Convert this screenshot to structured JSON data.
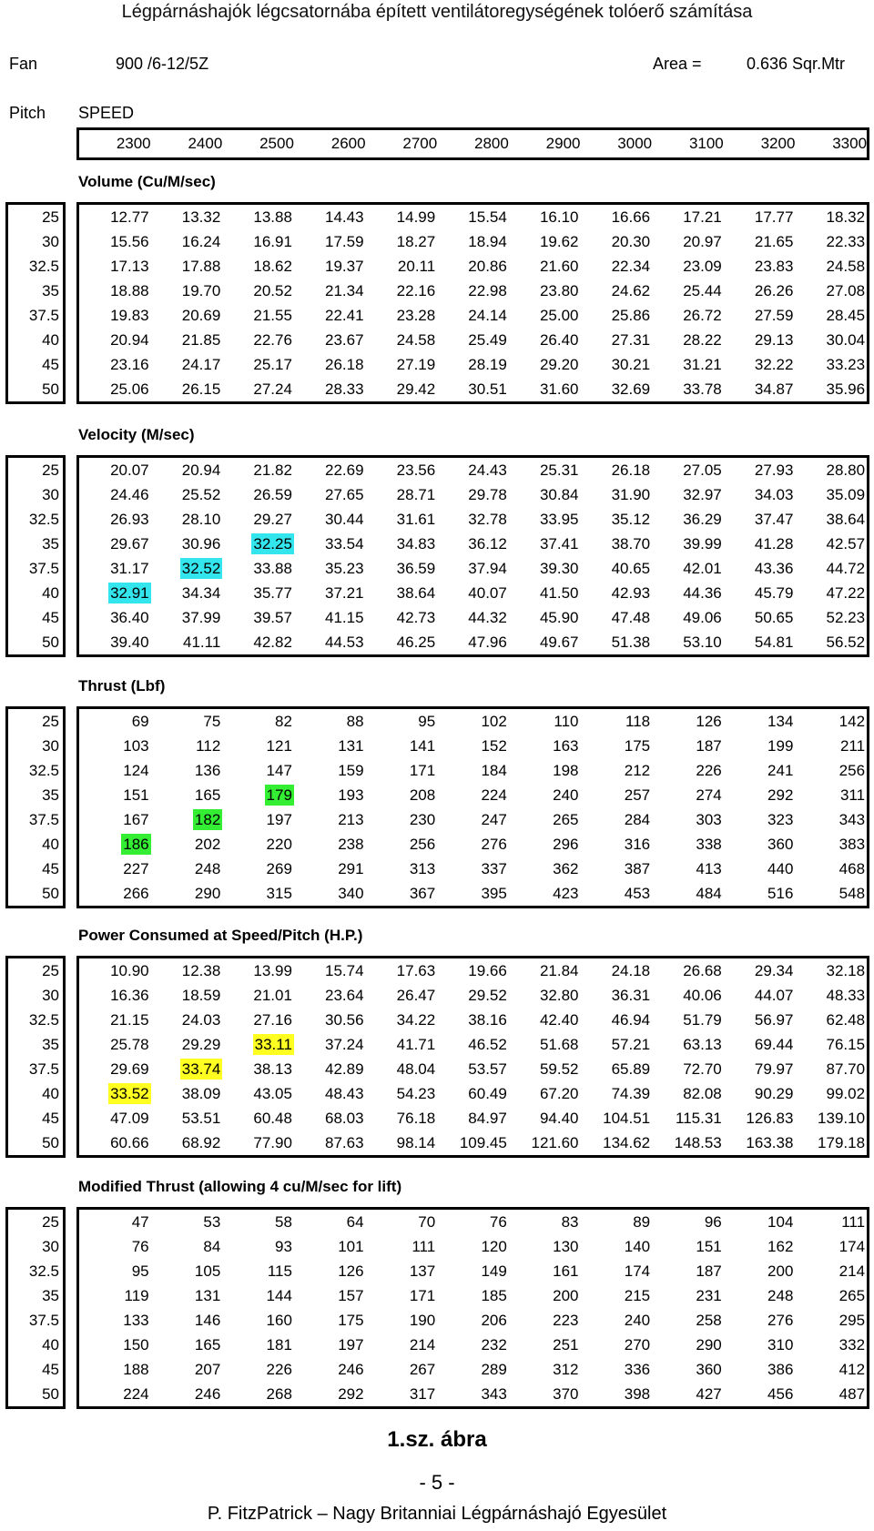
{
  "header": {
    "title": "Légpárnáshajók légcsatornába épített ventilátoregységének tolóerő számítása"
  },
  "fan": {
    "label": "Fan",
    "model": "900 /6-12/5Z",
    "area_label": "Area =",
    "area_value": "0.636 Sqr.Mtr"
  },
  "pitch_label": "Pitch",
  "speed_label": "SPEED",
  "speeds": [
    "2300",
    "2400",
    "2500",
    "2600",
    "2700",
    "2800",
    "2900",
    "3000",
    "3100",
    "3200",
    "3300"
  ],
  "pitches": [
    "25",
    "30",
    "32.5",
    "35",
    "37.5",
    "40",
    "45",
    "50"
  ],
  "highlight_colors": {
    "cyan": "#33e6ee",
    "green": "#33ee33",
    "yellow": "#ffff22"
  },
  "tables": [
    {
      "title": "Volume (Cu/M/sec)",
      "rows": [
        [
          "12.77",
          "13.32",
          "13.88",
          "14.43",
          "14.99",
          "15.54",
          "16.10",
          "16.66",
          "17.21",
          "17.77",
          "18.32"
        ],
        [
          "15.56",
          "16.24",
          "16.91",
          "17.59",
          "18.27",
          "18.94",
          "19.62",
          "20.30",
          "20.97",
          "21.65",
          "22.33"
        ],
        [
          "17.13",
          "17.88",
          "18.62",
          "19.37",
          "20.11",
          "20.86",
          "21.60",
          "22.34",
          "23.09",
          "23.83",
          "24.58"
        ],
        [
          "18.88",
          "19.70",
          "20.52",
          "21.34",
          "22.16",
          "22.98",
          "23.80",
          "24.62",
          "25.44",
          "26.26",
          "27.08"
        ],
        [
          "19.83",
          "20.69",
          "21.55",
          "22.41",
          "23.28",
          "24.14",
          "25.00",
          "25.86",
          "26.72",
          "27.59",
          "28.45"
        ],
        [
          "20.94",
          "21.85",
          "22.76",
          "23.67",
          "24.58",
          "25.49",
          "26.40",
          "27.31",
          "28.22",
          "29.13",
          "30.04"
        ],
        [
          "23.16",
          "24.17",
          "25.17",
          "26.18",
          "27.19",
          "28.19",
          "29.20",
          "30.21",
          "31.21",
          "32.22",
          "33.23"
        ],
        [
          "25.06",
          "26.15",
          "27.24",
          "28.33",
          "29.42",
          "30.51",
          "31.60",
          "32.69",
          "33.78",
          "34.87",
          "35.96"
        ]
      ],
      "highlight": null
    },
    {
      "title": "Velocity (M/sec)",
      "rows": [
        [
          "20.07",
          "20.94",
          "21.82",
          "22.69",
          "23.56",
          "24.43",
          "25.31",
          "26.18",
          "27.05",
          "27.93",
          "28.80"
        ],
        [
          "24.46",
          "25.52",
          "26.59",
          "27.65",
          "28.71",
          "29.78",
          "30.84",
          "31.90",
          "32.97",
          "34.03",
          "35.09"
        ],
        [
          "26.93",
          "28.10",
          "29.27",
          "30.44",
          "31.61",
          "32.78",
          "33.95",
          "35.12",
          "36.29",
          "37.47",
          "38.64"
        ],
        [
          "29.67",
          "30.96",
          "32.25",
          "33.54",
          "34.83",
          "36.12",
          "37.41",
          "38.70",
          "39.99",
          "41.28",
          "42.57"
        ],
        [
          "31.17",
          "32.52",
          "33.88",
          "35.23",
          "36.59",
          "37.94",
          "39.30",
          "40.65",
          "42.01",
          "43.36",
          "44.72"
        ],
        [
          "32.91",
          "34.34",
          "35.77",
          "37.21",
          "38.64",
          "40.07",
          "41.50",
          "42.93",
          "44.36",
          "45.79",
          "47.22"
        ],
        [
          "36.40",
          "37.99",
          "39.57",
          "41.15",
          "42.73",
          "44.32",
          "45.90",
          "47.48",
          "49.06",
          "50.65",
          "52.23"
        ],
        [
          "39.40",
          "41.11",
          "42.82",
          "44.53",
          "46.25",
          "47.96",
          "49.67",
          "51.38",
          "53.10",
          "54.81",
          "56.52"
        ]
      ],
      "highlight": "cyan"
    },
    {
      "title": "Thrust (Lbf)",
      "rows": [
        [
          "69",
          "75",
          "82",
          "88",
          "95",
          "102",
          "110",
          "118",
          "126",
          "134",
          "142"
        ],
        [
          "103",
          "112",
          "121",
          "131",
          "141",
          "152",
          "163",
          "175",
          "187",
          "199",
          "211"
        ],
        [
          "124",
          "136",
          "147",
          "159",
          "171",
          "184",
          "198",
          "212",
          "226",
          "241",
          "256"
        ],
        [
          "151",
          "165",
          "179",
          "193",
          "208",
          "224",
          "240",
          "257",
          "274",
          "292",
          "311"
        ],
        [
          "167",
          "182",
          "197",
          "213",
          "230",
          "247",
          "265",
          "284",
          "303",
          "323",
          "343"
        ],
        [
          "186",
          "202",
          "220",
          "238",
          "256",
          "276",
          "296",
          "316",
          "338",
          "360",
          "383"
        ],
        [
          "227",
          "248",
          "269",
          "291",
          "313",
          "337",
          "362",
          "387",
          "413",
          "440",
          "468"
        ],
        [
          "266",
          "290",
          "315",
          "340",
          "367",
          "395",
          "423",
          "453",
          "484",
          "516",
          "548"
        ]
      ],
      "highlight": "green"
    },
    {
      "title": "Power Consumed at Speed/Pitch (H.P.)",
      "rows": [
        [
          "10.90",
          "12.38",
          "13.99",
          "15.74",
          "17.63",
          "19.66",
          "21.84",
          "24.18",
          "26.68",
          "29.34",
          "32.18"
        ],
        [
          "16.36",
          "18.59",
          "21.01",
          "23.64",
          "26.47",
          "29.52",
          "32.80",
          "36.31",
          "40.06",
          "44.07",
          "48.33"
        ],
        [
          "21.15",
          "24.03",
          "27.16",
          "30.56",
          "34.22",
          "38.16",
          "42.40",
          "46.94",
          "51.79",
          "56.97",
          "62.48"
        ],
        [
          "25.78",
          "29.29",
          "33.11",
          "37.24",
          "41.71",
          "46.52",
          "51.68",
          "57.21",
          "63.13",
          "69.44",
          "76.15"
        ],
        [
          "29.69",
          "33.74",
          "38.13",
          "42.89",
          "48.04",
          "53.57",
          "59.52",
          "65.89",
          "72.70",
          "79.97",
          "87.70"
        ],
        [
          "33.52",
          "38.09",
          "43.05",
          "48.43",
          "54.23",
          "60.49",
          "67.20",
          "74.39",
          "82.08",
          "90.29",
          "99.02"
        ],
        [
          "47.09",
          "53.51",
          "60.48",
          "68.03",
          "76.18",
          "84.97",
          "94.40",
          "104.51",
          "115.31",
          "126.83",
          "139.10"
        ],
        [
          "60.66",
          "68.92",
          "77.90",
          "87.63",
          "98.14",
          "109.45",
          "121.60",
          "134.62",
          "148.53",
          "163.38",
          "179.18"
        ]
      ],
      "highlight": "yellow"
    },
    {
      "title": "Modified Thrust (allowing 4 cu/M/sec for lift)",
      "rows": [
        [
          "47",
          "53",
          "58",
          "64",
          "70",
          "76",
          "83",
          "89",
          "96",
          "104",
          "111"
        ],
        [
          "76",
          "84",
          "93",
          "101",
          "111",
          "120",
          "130",
          "140",
          "151",
          "162",
          "174"
        ],
        [
          "95",
          "105",
          "115",
          "126",
          "137",
          "149",
          "161",
          "174",
          "187",
          "200",
          "214"
        ],
        [
          "119",
          "131",
          "144",
          "157",
          "171",
          "185",
          "200",
          "215",
          "231",
          "248",
          "265"
        ],
        [
          "133",
          "146",
          "160",
          "175",
          "190",
          "206",
          "223",
          "240",
          "258",
          "276",
          "295"
        ],
        [
          "150",
          "165",
          "181",
          "197",
          "214",
          "232",
          "251",
          "270",
          "290",
          "310",
          "332"
        ],
        [
          "188",
          "207",
          "226",
          "246",
          "267",
          "289",
          "312",
          "336",
          "360",
          "386",
          "412"
        ],
        [
          "224",
          "246",
          "268",
          "292",
          "317",
          "343",
          "370",
          "398",
          "427",
          "456",
          "487"
        ]
      ],
      "highlight": null
    }
  ],
  "highlighted_cells": [
    [
      3,
      2
    ],
    [
      4,
      1
    ],
    [
      5,
      0
    ]
  ],
  "caption": "1.sz. ábra",
  "page_number": "- 5 -",
  "footer": "P. FitzPatrick – Nagy Britanniai Légpárnáshajó Egyesület"
}
